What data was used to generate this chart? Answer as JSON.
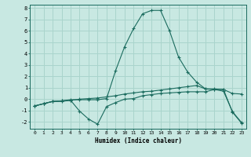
{
  "xlabel": "Humidex (Indice chaleur)",
  "bg_color": "#c8e8e2",
  "grid_color": "#aad4cc",
  "line_color": "#1a6b5e",
  "xlim": [
    -0.5,
    23.5
  ],
  "ylim": [
    -2.6,
    8.3
  ],
  "xticks": [
    0,
    1,
    2,
    3,
    4,
    5,
    6,
    7,
    8,
    9,
    10,
    11,
    12,
    13,
    14,
    15,
    16,
    17,
    18,
    19,
    20,
    21,
    22,
    23
  ],
  "yticks": [
    -2,
    -1,
    0,
    1,
    2,
    3,
    4,
    5,
    6,
    7,
    8
  ],
  "series_peak_x": [
    0,
    1,
    2,
    3,
    4,
    5,
    6,
    7,
    8,
    9,
    10,
    11,
    12,
    13,
    14,
    15,
    16,
    17,
    18,
    19,
    20,
    21,
    22,
    23
  ],
  "series_peak_y": [
    -0.6,
    -0.4,
    -0.2,
    -0.15,
    -0.05,
    -0.05,
    -0.05,
    -0.05,
    0.05,
    2.5,
    4.6,
    6.2,
    7.5,
    7.8,
    7.8,
    6.0,
    3.7,
    2.4,
    1.5,
    0.9,
    0.9,
    0.85,
    -1.15,
    -2.1
  ],
  "series_flat_x": [
    0,
    1,
    2,
    3,
    4,
    5,
    6,
    7,
    8,
    9,
    10,
    11,
    12,
    13,
    14,
    15,
    16,
    17,
    18,
    19,
    20,
    21,
    22,
    23
  ],
  "series_flat_y": [
    -0.6,
    -0.4,
    -0.2,
    -0.2,
    -0.1,
    -1.05,
    -1.75,
    -2.2,
    -0.65,
    -0.3,
    0.0,
    0.05,
    0.3,
    0.4,
    0.5,
    0.55,
    0.6,
    0.65,
    0.65,
    0.65,
    0.85,
    0.85,
    0.5,
    0.45
  ],
  "series_rise_x": [
    0,
    1,
    2,
    3,
    4,
    5,
    6,
    7,
    8,
    9,
    10,
    11,
    12,
    13,
    14,
    15,
    16,
    17,
    18,
    19,
    20,
    21,
    22,
    23
  ],
  "series_rise_y": [
    -0.6,
    -0.4,
    -0.2,
    -0.15,
    -0.1,
    0.0,
    0.05,
    0.1,
    0.2,
    0.3,
    0.45,
    0.55,
    0.65,
    0.7,
    0.8,
    0.9,
    1.0,
    1.1,
    1.2,
    0.9,
    0.85,
    0.7,
    -1.1,
    -2.05
  ]
}
